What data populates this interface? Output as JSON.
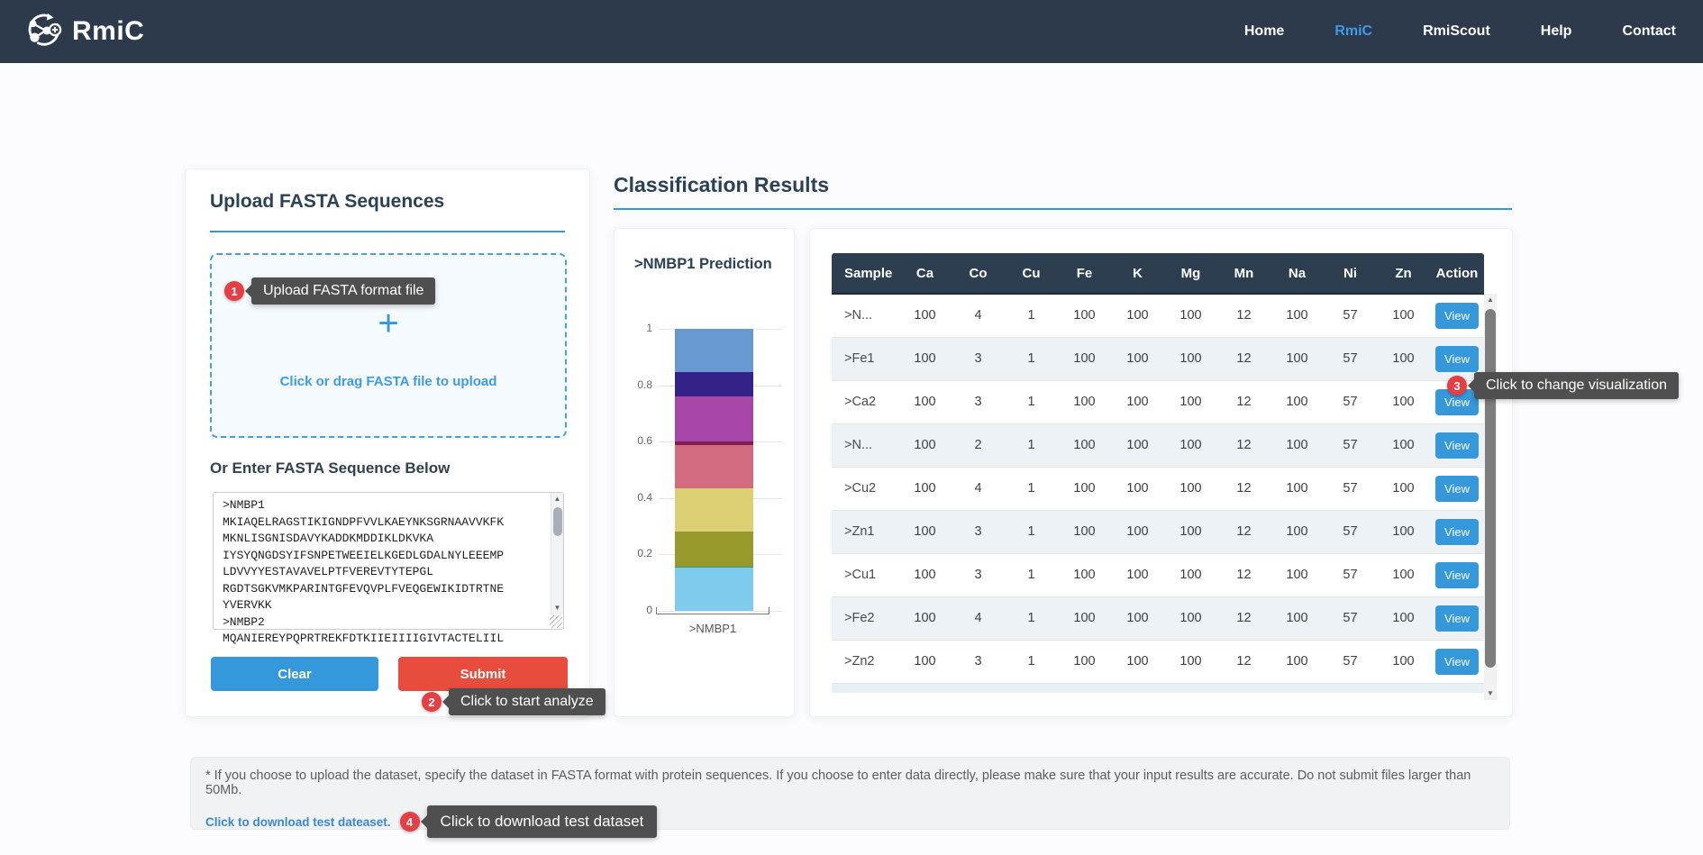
{
  "navbar": {
    "brand": "RmiC",
    "items": [
      {
        "label": "Home",
        "active": false
      },
      {
        "label": "RmiC",
        "active": true
      },
      {
        "label": "RmiScout",
        "active": false
      },
      {
        "label": "Help",
        "active": false
      },
      {
        "label": "Contact",
        "active": false
      }
    ]
  },
  "upload": {
    "title": "Upload FASTA Sequences",
    "plus": "+",
    "dropzone_hint": "Click or drag FASTA file to upload",
    "entry_label": "Or Enter FASTA Sequence Below",
    "fasta_text": ">NMBP1\nMKIAQELRAGSTIKIGNDPFVVLKAEYNKSGRNAAVVKFK\nMKNLISGNISDAVYKADDKMDDIKLDKVKA\nIYSYQNGDSYIFSNPETWEEIELKGEDLGDALNYLEEEMP\nLDVVYYESTAVAVELPTFVEREVTYTEPGL\nRGDTSGKVMKPARINTGFEVQVPLFVEQGEWIKIDTRTNE\nYVERVKK\n>NMBP2\nMQANIEREYPQPRTREKFDTKIIEIIIIGIVTACTELIIL",
    "clear_label": "Clear",
    "submit_label": "Submit"
  },
  "annotations": [
    {
      "step": "1",
      "text": "Upload FASTA format file"
    },
    {
      "step": "2",
      "text": "Click to start analyze"
    },
    {
      "step": "3",
      "text": "Click to change visualization"
    },
    {
      "step": "4",
      "text": "Click to download test dataset"
    }
  ],
  "results": {
    "title": "Classification Results",
    "chart_title": ">NMBP1 Prediction",
    "table": {
      "columns": [
        "Sample",
        "Ca",
        "Co",
        "Cu",
        "Fe",
        "K",
        "Mg",
        "Mn",
        "Na",
        "Ni",
        "Zn",
        "Action"
      ],
      "action_label": "View",
      "rows": [
        {
          "sample": ">N...",
          "values": [
            100,
            4,
            1,
            100,
            100,
            100,
            12,
            100,
            57,
            100
          ]
        },
        {
          "sample": ">Fe1",
          "values": [
            100,
            3,
            1,
            100,
            100,
            100,
            12,
            100,
            57,
            100
          ]
        },
        {
          "sample": ">Ca2",
          "values": [
            100,
            3,
            1,
            100,
            100,
            100,
            12,
            100,
            57,
            100
          ]
        },
        {
          "sample": ">N...",
          "values": [
            100,
            2,
            1,
            100,
            100,
            100,
            12,
            100,
            57,
            100
          ]
        },
        {
          "sample": ">Cu2",
          "values": [
            100,
            4,
            1,
            100,
            100,
            100,
            12,
            100,
            57,
            100
          ]
        },
        {
          "sample": ">Zn1",
          "values": [
            100,
            3,
            1,
            100,
            100,
            100,
            12,
            100,
            57,
            100
          ]
        },
        {
          "sample": ">Cu1",
          "values": [
            100,
            3,
            1,
            100,
            100,
            100,
            12,
            100,
            57,
            100
          ]
        },
        {
          "sample": ">Fe2",
          "values": [
            100,
            4,
            1,
            100,
            100,
            100,
            12,
            100,
            57,
            100
          ]
        },
        {
          "sample": ">Zn2",
          "values": [
            100,
            3,
            1,
            100,
            100,
            100,
            12,
            100,
            57,
            100
          ]
        }
      ]
    }
  },
  "chart_data": {
    "type": "bar",
    "stacked": true,
    "title": ">NMBP1 Prediction",
    "categories": [
      ">NMBP1"
    ],
    "xlabel": "",
    "ylabel": "",
    "ylim": [
      0,
      1
    ],
    "grid": true,
    "yticks": [
      {
        "v": 1,
        "label": "1"
      },
      {
        "v": 0.8,
        "label": "0.8"
      },
      {
        "v": 0.6,
        "label": "0.6"
      },
      {
        "v": 0.4,
        "label": "0.4"
      },
      {
        "v": 0.2,
        "label": "0.2"
      },
      {
        "v": 0,
        "label": "0"
      }
    ],
    "segments_bottom_to_top": [
      {
        "value": 0.153,
        "color": "#7fcbee"
      },
      {
        "value": 0.004,
        "color": "#2fa377"
      },
      {
        "value": 0.124,
        "color": "#98992b"
      },
      {
        "value": 0.154,
        "color": "#dccf74"
      },
      {
        "value": 0.154,
        "color": "#d26a80"
      },
      {
        "value": 0.012,
        "color": "#7e1e4e"
      },
      {
        "value": 0.158,
        "color": "#a845a8"
      },
      {
        "value": 0.087,
        "color": "#342288"
      },
      {
        "value": 0.154,
        "color": "#6899d0"
      }
    ]
  },
  "footer": {
    "note": "* If you choose to upload the dataset, specify the dataset in FASTA format with protein sequences. If you choose to enter data directly, please make sure that your input results are accurate. Do not submit files larger than 50Mb.",
    "download_link": "Click to download test dateaset."
  },
  "colors": {
    "navbar_bg": "#2d3a4c",
    "accent_blue": "#3498db",
    "nav_active_blue": "#3d9be9",
    "submit_red": "#e74c3c",
    "badge_red": "#e43f44",
    "tooltip_bg": "#4f4f4f",
    "table_header_bg": "#2c3e50",
    "row_alt_bg": "#edf2f7",
    "heading_navy": "#2b4156",
    "link_blue": "#3a87d6"
  }
}
